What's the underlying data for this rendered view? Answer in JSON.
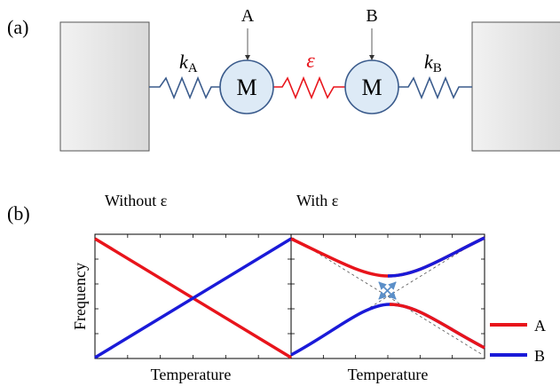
{
  "panel_a": {
    "label": "(a)",
    "mass_label": "M",
    "pointer_left": "A",
    "pointer_right": "B",
    "spring_left": {
      "symbol": "k",
      "subscript": "A"
    },
    "spring_middle": {
      "symbol": "ε"
    },
    "spring_right": {
      "symbol": "k",
      "subscript": "B"
    }
  },
  "panel_b": {
    "label": "(b)",
    "left_title": "Without ε",
    "right_title": "With ε",
    "ylabel": "Frequency",
    "xlabel_left": "Temperature",
    "xlabel_right": "Temperature",
    "legend": [
      {
        "label": "A",
        "color": "#e8141b"
      },
      {
        "label": "B",
        "color": "#1a1ad8"
      }
    ]
  },
  "colors": {
    "spring_outer": "#3a5b8c",
    "spring_coupling": "#e8141b",
    "wall_fill": "#e6e6e6",
    "mass_fill": "#ddeaf6",
    "mass_stroke": "#3a5b8c",
    "curve_A": "#e8141b",
    "curve_B": "#1a1ad8",
    "arrow": "#5b8fc8"
  },
  "chart_data": [
    {
      "type": "line",
      "title": "Without ε",
      "xlabel": "Temperature",
      "ylabel": "Frequency",
      "x": [
        0,
        1
      ],
      "ylim": [
        0,
        1
      ],
      "series": [
        {
          "name": "A",
          "values": [
            0.96,
            0.0
          ]
        },
        {
          "name": "B",
          "values": [
            0.0,
            0.96
          ]
        }
      ]
    },
    {
      "type": "line",
      "title": "With ε",
      "xlabel": "Temperature",
      "ylabel": "Frequency",
      "x": [
        0,
        1
      ],
      "ylim": [
        0,
        1
      ],
      "series": [
        {
          "name": "A",
          "description": "upper branch left of anti-crossing, lower branch right"
        },
        {
          "name": "B",
          "description": "lower branch left of anti-crossing, upper branch right"
        }
      ]
    }
  ]
}
